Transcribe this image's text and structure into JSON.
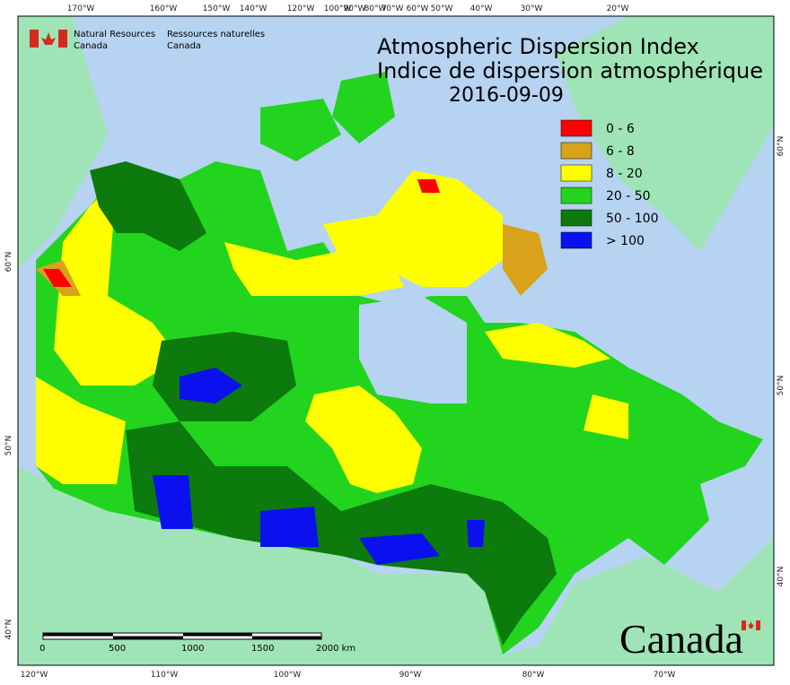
{
  "header": {
    "agency_en": [
      "Natural Resources",
      "Canada"
    ],
    "agency_fr": [
      "Ressources naturelles",
      "Canada"
    ]
  },
  "map": {
    "title": [
      "Atmospheric Dispersion Index",
      "Indice de dispersion atmosphérique",
      "2016-09-09"
    ],
    "legend": [
      {
        "label": "0 - 6",
        "color": "#ff0000"
      },
      {
        "label": "6 - 8",
        "color": "#d9a21b"
      },
      {
        "label": "8 - 20",
        "color": "#ffff00"
      },
      {
        "label": "20 - 50",
        "color": "#22d41e"
      },
      {
        "label": "50 - 100",
        "color": "#0c7a0c"
      },
      {
        "label": "> 100",
        "color": "#0a10ee"
      }
    ],
    "top_labels": [
      "170°W",
      "160°W",
      "150°W",
      "140°W",
      "120°W",
      "100°W",
      "90°W",
      "80°W",
      "70°W",
      "60°W",
      "50°W",
      "40°W",
      "30°W",
      "20°W"
    ],
    "bottom_labels": [
      "120°W",
      "110°W",
      "100°W",
      "90°W",
      "80°W",
      "70°W"
    ],
    "left_labels": [
      "60°N",
      "50°N",
      "40°N"
    ],
    "right_labels": [
      "60°N",
      "50°N",
      "40°N"
    ],
    "scale_labels": [
      "0",
      "500",
      "1000",
      "1500",
      "2000 km"
    ]
  },
  "wordmark": "Canada"
}
